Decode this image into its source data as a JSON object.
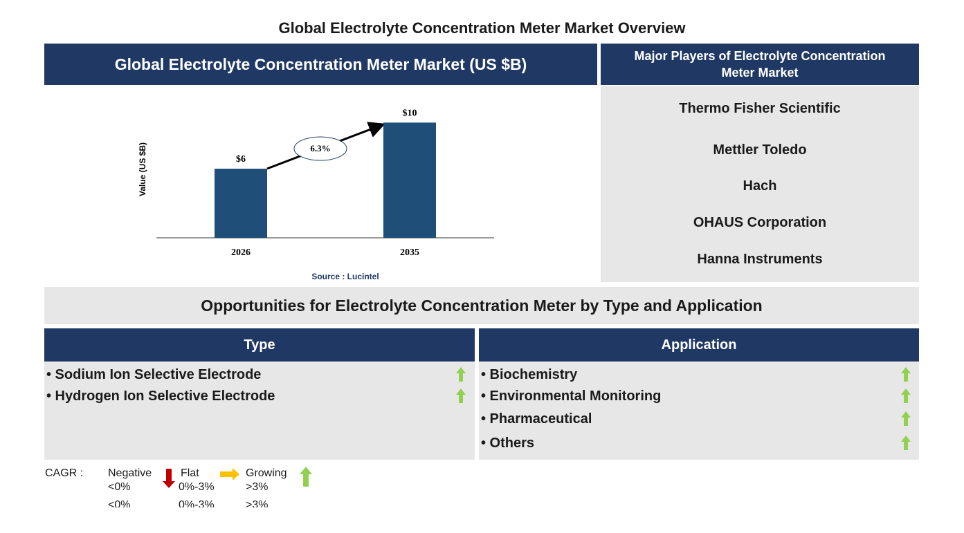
{
  "title": "Global Electrolyte Concentration Meter Market Overview",
  "chart_data": {
    "type": "bar",
    "title": "Global Electrolyte Concentration Meter Market (US $B)",
    "y_label": "Value (US $B)",
    "categories": [
      "2026",
      "2035"
    ],
    "values": [
      6,
      10
    ],
    "value_labels": [
      "$6",
      "$10"
    ],
    "color": "#1f4e79",
    "ylim": [
      0,
      12
    ],
    "annotation": "6.3%",
    "source": "Source : Lucintel"
  },
  "players": {
    "title": "Major Players of Electrolyte Concentration Meter Market",
    "items": [
      "Thermo Fisher Scientific",
      "Mettler Toledo",
      "Hach",
      "OHAUS Corporation",
      "Hanna Instruments"
    ]
  },
  "opportunities": {
    "title": "Opportunities for Electrolyte Concentration Meter by Type and Application",
    "type": {
      "title": "Type",
      "items": [
        "• Sodium Ion Selective Electrode",
        "• Hydrogen Ion Selective Electrode"
      ]
    },
    "application": {
      "title": "Application",
      "items": [
        "• Biochemistry",
        "• Environmental Monitoring",
        "• Pharmaceutical",
        "• Others"
      ]
    }
  },
  "legend": {
    "label": "CAGR :",
    "items": [
      {
        "name": "Negative",
        "range": "<0%"
      },
      {
        "name": "Flat",
        "range": "0%-3%"
      },
      {
        "name": "Growing",
        "range": ">3%"
      }
    ]
  }
}
